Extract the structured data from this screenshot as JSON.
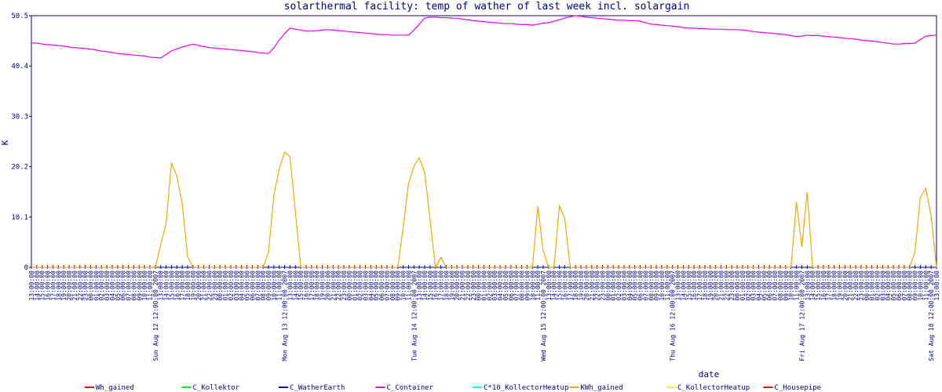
{
  "chart_data": {
    "type": "line",
    "title": "solarthermal facility: temp of wather of last week incl. solargain",
    "x_label": "date",
    "y_label": "K",
    "ylim": [
      0,
      50.5
    ],
    "yticks": [
      0,
      10.1,
      20.2,
      30.3,
      40.4,
      50.5
    ],
    "grid": false,
    "legend": "bottom",
    "categories": [
      "13:00:00",
      "14:00:00",
      "15:00:00",
      "16:00:00",
      "17:00:00",
      "18:00:00",
      "19:00:00",
      "20:00:00",
      "21:00:00",
      "22:00:00",
      "23:00:00",
      "00:00:00",
      "01:00:00",
      "02:00:00",
      "03:00:00",
      "04:00:00",
      "05:00:00",
      "06:00:00",
      "07:00:00",
      "08:00:00",
      "09:00:00",
      "10:00:00",
      "11:00:00",
      "Sun Aug 12 12:00:00 2007",
      "13:00:00",
      "14:00:00",
      "15:00:00",
      "16:00:00",
      "17:00:00",
      "18:00:00",
      "19:00:00",
      "20:00:00",
      "21:00:00",
      "22:00:00",
      "23:00:00",
      "00:00:00",
      "01:00:00",
      "02:00:00",
      "03:00:00",
      "04:00:00",
      "05:00:00",
      "06:00:00",
      "07:00:00",
      "08:00:00",
      "09:00:00",
      "10:00:00",
      "11:00:00",
      "Mon Aug 13 12:00:00 2007",
      "13:00:00",
      "14:00:00",
      "15:00:00",
      "16:00:00",
      "17:00:00",
      "18:00:00",
      "19:00:00",
      "20:00:00",
      "21:00:00",
      "22:00:00",
      "23:00:00",
      "00:00:00",
      "01:00:00",
      "02:00:00",
      "03:00:00",
      "04:00:00",
      "05:00:00",
      "06:00:00",
      "07:00:00",
      "08:00:00",
      "09:00:00",
      "10:00:00",
      "11:00:00",
      "Tue Aug 14 12:00:00 2007",
      "13:00:00",
      "14:00:00",
      "15:00:00",
      "16:00:00",
      "17:00:00",
      "18:00:00",
      "19:00:00",
      "20:00:00",
      "21:00:00",
      "22:00:00",
      "23:00:00",
      "00:00:00",
      "01:00:00",
      "02:00:00",
      "03:00:00",
      "04:00:00",
      "05:00:00",
      "06:00:00",
      "07:00:00",
      "08:00:00",
      "09:00:00",
      "10:00:00",
      "11:00:00",
      "Wed Aug 15 12:00:00 2007",
      "13:00:00",
      "14:00:00",
      "15:00:00",
      "16:00:00",
      "17:00:00",
      "18:00:00",
      "19:00:00",
      "20:00:00",
      "21:00:00",
      "22:00:00",
      "23:00:00",
      "00:00:00",
      "01:00:00",
      "02:00:00",
      "03:00:00",
      "04:00:00",
      "05:00:00",
      "06:00:00",
      "07:00:00",
      "08:00:00",
      "09:00:00",
      "10:00:00",
      "11:00:00",
      "Thu Aug 16 12:00:00 2007",
      "13:00:00",
      "14:00:00",
      "15:00:00",
      "16:00:00",
      "17:00:00",
      "18:00:00",
      "19:00:00",
      "20:00:00",
      "21:00:00",
      "22:00:00",
      "23:00:00",
      "00:00:00",
      "01:00:00",
      "02:00:00",
      "03:00:00",
      "04:00:00",
      "05:00:00",
      "06:00:00",
      "07:00:00",
      "08:00:00",
      "09:00:00",
      "10:00:00",
      "11:00:00",
      "Fri Aug 17 12:00:00 2007",
      "13:00:00",
      "14:00:00",
      "15:00:00",
      "16:00:00",
      "17:00:00",
      "18:00:00",
      "19:00:00",
      "20:00:00",
      "21:00:00",
      "22:00:00",
      "23:00:00",
      "00:00:00",
      "01:00:00",
      "02:00:00",
      "03:00:00",
      "04:00:00",
      "05:00:00",
      "06:00:00",
      "07:00:00",
      "08:00:00",
      "09:00:00",
      "10:00:00",
      "11:00:00",
      "Sat Aug 18 12:00:00 2007",
      "13:00:00"
    ],
    "series": [
      {
        "name": "Wh_gained",
        "color": "#ff0000"
      },
      {
        "name": "C_Kollektor",
        "color": "#00ff00"
      },
      {
        "name": "C_WatherEarth",
        "color": "#0000cc"
      },
      {
        "name": "C_Container",
        "color": "#ee00ee",
        "values": [
          45.0,
          45.0,
          44.8,
          44.7,
          44.6,
          44.5,
          44.4,
          44.2,
          44.1,
          44.0,
          43.9,
          43.8,
          43.6,
          43.4,
          43.3,
          43.1,
          42.9,
          42.8,
          42.7,
          42.6,
          42.5,
          42.4,
          42.2,
          42.1,
          42.0,
          42.7,
          43.4,
          43.8,
          44.2,
          44.5,
          44.8,
          44.5,
          44.3,
          44.1,
          44.0,
          43.9,
          43.8,
          43.7,
          43.6,
          43.5,
          43.4,
          43.3,
          43.1,
          43.0,
          42.9,
          44.0,
          45.6,
          46.9,
          48.0,
          47.8,
          47.6,
          47.4,
          47.4,
          47.5,
          47.6,
          47.7,
          47.6,
          47.5,
          47.4,
          47.3,
          47.2,
          47.1,
          47.0,
          46.9,
          46.8,
          46.7,
          46.7,
          46.6,
          46.6,
          46.6,
          46.6,
          47.6,
          48.8,
          50.0,
          50.2,
          50.2,
          50.1,
          50.1,
          50.0,
          50.0,
          49.8,
          49.7,
          49.5,
          49.4,
          49.3,
          49.2,
          49.1,
          49.0,
          48.9,
          48.9,
          48.8,
          48.7,
          48.7,
          48.6,
          48.8,
          49.0,
          49.1,
          49.4,
          49.7,
          50.0,
          50.3,
          50.5,
          50.4,
          50.2,
          50.1,
          50.0,
          49.9,
          49.8,
          49.7,
          49.6,
          49.6,
          49.5,
          49.5,
          49.4,
          49.1,
          48.8,
          48.7,
          48.6,
          48.5,
          48.4,
          48.3,
          48.1,
          48.0,
          48.0,
          47.9,
          47.9,
          47.8,
          47.8,
          47.8,
          47.7,
          47.7,
          47.7,
          47.6,
          47.5,
          47.3,
          47.2,
          47.1,
          47.0,
          46.9,
          46.8,
          46.7,
          46.5,
          46.3,
          46.4,
          46.6,
          46.5,
          46.5,
          46.4,
          46.3,
          46.2,
          46.1,
          46.0,
          45.9,
          45.8,
          45.6,
          45.5,
          45.4,
          45.3,
          45.1,
          45.0,
          44.8,
          44.8,
          44.9,
          44.9,
          45.0,
          45.7,
          46.4,
          46.5,
          46.6
        ]
      },
      {
        "name": "C*10_KollectorHeatup",
        "color": "#00ffff"
      },
      {
        "name": "KWh_gained",
        "color": "#f0a800",
        "values": [
          0,
          0,
          0,
          0,
          0,
          0,
          0,
          0,
          0,
          0,
          0,
          0,
          0,
          0,
          0,
          0,
          0,
          0,
          0,
          0,
          0,
          0,
          0,
          0,
          4.5,
          8.8,
          21.0,
          18.3,
          12.7,
          2.2,
          0,
          0,
          0,
          0,
          0,
          0,
          0,
          0,
          0,
          0,
          0,
          0,
          0,
          0,
          3.0,
          14.3,
          19.8,
          23.1,
          22.2,
          11.2,
          0,
          0,
          0,
          0,
          0,
          0,
          0,
          0,
          0,
          0,
          0,
          0,
          0,
          0,
          0,
          0,
          0,
          0,
          0,
          8.0,
          16.7,
          20.3,
          22.0,
          19.0,
          9.6,
          0,
          2.0,
          0,
          0,
          0,
          0,
          0,
          0,
          0,
          0,
          0,
          0,
          0,
          0,
          0,
          0,
          0,
          0,
          0,
          12.3,
          3.3,
          0,
          0,
          12.3,
          9.9,
          0,
          0,
          0,
          0,
          0,
          0,
          0,
          0,
          0,
          0,
          0,
          0,
          0,
          0,
          0,
          0,
          0,
          0,
          0,
          0,
          0,
          0,
          0,
          0,
          0,
          0,
          0,
          0,
          0,
          0,
          0,
          0,
          0,
          0,
          0,
          0,
          0,
          0,
          0,
          0,
          0,
          0,
          13.1,
          4.1,
          15.1,
          0,
          0,
          0,
          0,
          0,
          0,
          0,
          0,
          0,
          0,
          0,
          0,
          0,
          0,
          0,
          0,
          0,
          0,
          0,
          3.0,
          14.0,
          15.9,
          10.4,
          0
        ]
      },
      {
        "name": "C_KollectorHeatup",
        "color": "#ffff00"
      },
      {
        "name": "C_Housepipe",
        "color": "#ff0000"
      }
    ]
  }
}
